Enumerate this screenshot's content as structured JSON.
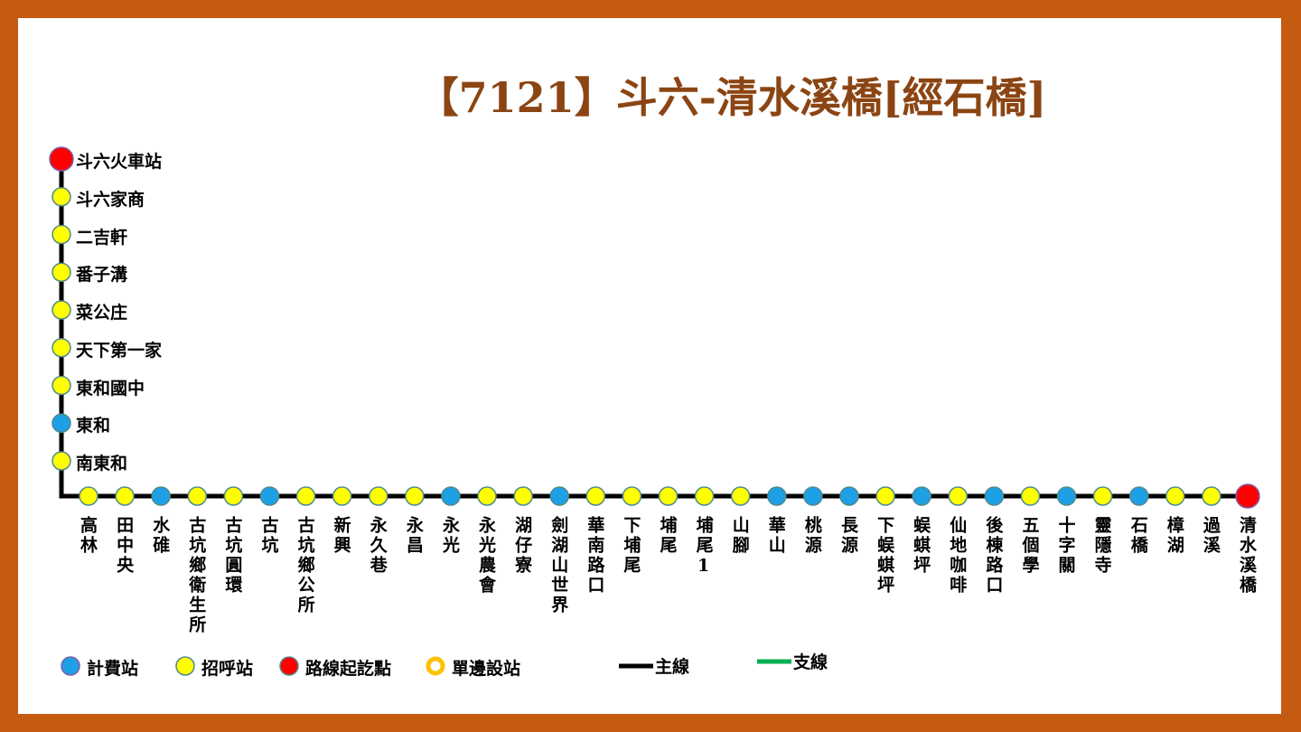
{
  "title": "【7121】斗六-清水溪橋[經石橋]",
  "vertical_stations": [
    {
      "name": "斗六火車站",
      "color": "#ff0000"
    },
    {
      "name": "斗六家商",
      "color": "#ffff00"
    },
    {
      "name": "二吉軒",
      "color": "#ffff00"
    },
    {
      "name": "番子溝",
      "color": "#ffff00"
    },
    {
      "name": "菜公庄",
      "color": "#ffff00"
    },
    {
      "name": "天下第一家",
      "color": "#ffff00"
    },
    {
      "name": "東和國中",
      "color": "#ffff00"
    },
    {
      "name": "東和",
      "color": "#1ea0e6"
    },
    {
      "name": "南東和",
      "color": "#ffff00"
    }
  ],
  "horizontal_stations": [
    {
      "name": "高林",
      "color": "#ffff00"
    },
    {
      "name": "田中央",
      "color": "#ffff00"
    },
    {
      "name": "水碓",
      "color": "#1ea0e6"
    },
    {
      "name": "古坑鄉衛生所",
      "color": "#ffff00"
    },
    {
      "name": "古坑圓環",
      "color": "#ffff00"
    },
    {
      "name": "古坑",
      "color": "#1ea0e6"
    },
    {
      "name": "古坑鄉公所",
      "color": "#ffff00"
    },
    {
      "name": "新興",
      "color": "#ffff00"
    },
    {
      "name": "永久巷",
      "color": "#ffff00"
    },
    {
      "name": "永昌",
      "color": "#ffff00"
    },
    {
      "name": "永光",
      "color": "#1ea0e6"
    },
    {
      "name": "永光農會",
      "color": "#ffff00"
    },
    {
      "name": "湖仔寮",
      "color": "#ffff00"
    },
    {
      "name": "劍湖山世界",
      "color": "#1ea0e6"
    },
    {
      "name": "華南路口",
      "color": "#ffff00"
    },
    {
      "name": "下埔尾",
      "color": "#ffff00"
    },
    {
      "name": "埔尾",
      "color": "#ffff00"
    },
    {
      "name": "埔尾1",
      "color": "#ffff00"
    },
    {
      "name": "山腳",
      "color": "#ffff00"
    },
    {
      "name": "華山",
      "color": "#1ea0e6"
    },
    {
      "name": "桃源",
      "color": "#1ea0e6"
    },
    {
      "name": "長源",
      "color": "#1ea0e6"
    },
    {
      "name": "下蜈蜞坪",
      "color": "#ffff00"
    },
    {
      "name": "蜈蜞坪",
      "color": "#1ea0e6"
    },
    {
      "name": "仙地咖啡",
      "color": "#ffff00"
    },
    {
      "name": "後棟路口",
      "color": "#1ea0e6"
    },
    {
      "name": "五個學",
      "color": "#ffff00"
    },
    {
      "name": "十字關",
      "color": "#1ea0e6"
    },
    {
      "name": "靈隱寺",
      "color": "#ffff00"
    },
    {
      "name": "石橋",
      "color": "#1ea0e6"
    },
    {
      "name": "樟湖",
      "color": "#ffff00"
    },
    {
      "name": "過溪",
      "color": "#ffff00"
    },
    {
      "name": "清水溪橋",
      "color": "#ff0000"
    }
  ],
  "legend": [
    {
      "label": "計費站",
      "color": "#1ea0e6"
    },
    {
      "label": "招呼站",
      "color": "#ffff00"
    },
    {
      "label": "路線起訖點",
      "color": "#ff0000"
    },
    {
      "label": "單邊設站",
      "color": "#ffffff"
    },
    {
      "label": "主線",
      "color": "#000000"
    },
    {
      "label": "支線",
      "color": "#00b050"
    }
  ]
}
